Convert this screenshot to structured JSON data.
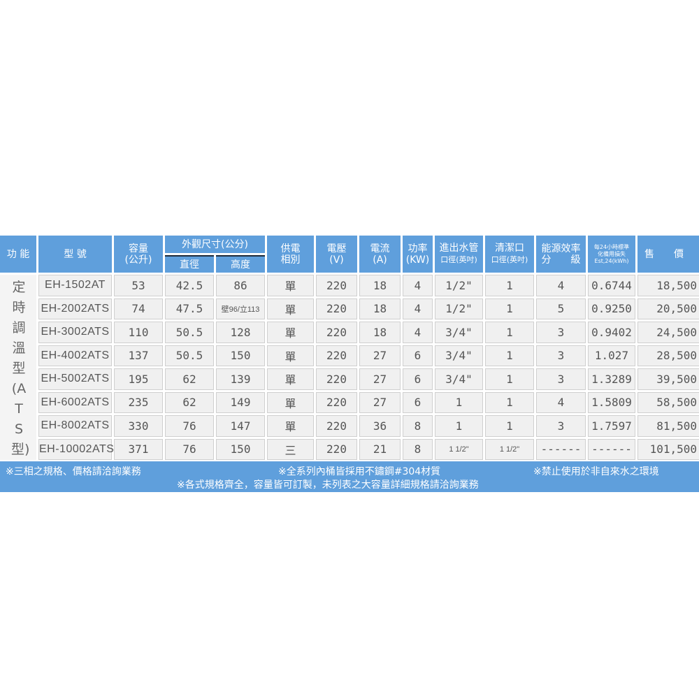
{
  "header": {
    "function": "功 能",
    "model": "型 號",
    "capacity": [
      "容量",
      "(公升)"
    ],
    "dimensions": "外觀尺寸(公分)",
    "diameter": "直徑",
    "height": "高度",
    "phase": [
      "供電",
      "相別"
    ],
    "voltage": [
      "電壓",
      "(V)"
    ],
    "current": [
      "電流",
      "(A)"
    ],
    "power": [
      "功率",
      "(KW)"
    ],
    "pipe": [
      "進出水管",
      "口徑(英吋)"
    ],
    "cleanout": [
      "清潔口",
      "口徑(英吋)"
    ],
    "energy": [
      "能源效率",
      "分　　級"
    ],
    "standby_loss": [
      "每24小時標準",
      "化備用損失",
      "Est,24(kWh)"
    ],
    "price": "售　　價"
  },
  "function_label": "定時調溫型(ATS型)",
  "rows": [
    [
      "EH-1502AT",
      "53",
      "42.5",
      "86",
      "單",
      "220",
      "18",
      "4",
      "1/2\"",
      "1",
      "4",
      "0.6744",
      "18,500"
    ],
    [
      "EH-2002ATS",
      "74",
      "47.5",
      "壁96/立113",
      "單",
      "220",
      "18",
      "4",
      "1/2\"",
      "1",
      "5",
      "0.9250",
      "20,500"
    ],
    [
      "EH-3002ATS",
      "110",
      "50.5",
      "128",
      "單",
      "220",
      "18",
      "4",
      "3/4\"",
      "1",
      "3",
      "0.9402",
      "24,500"
    ],
    [
      "EH-4002ATS",
      "137",
      "50.5",
      "150",
      "單",
      "220",
      "27",
      "6",
      "3/4\"",
      "1",
      "3",
      "1.027",
      "28,500"
    ],
    [
      "EH-5002ATS",
      "195",
      "62",
      "139",
      "單",
      "220",
      "27",
      "6",
      "3/4\"",
      "1",
      "3",
      "1.3289",
      "39,500"
    ],
    [
      "EH-6002ATS",
      "235",
      "62",
      "149",
      "單",
      "220",
      "27",
      "6",
      "1",
      "1",
      "4",
      "1.5809",
      "58,500"
    ],
    [
      "EH-8002ATS",
      "330",
      "76",
      "147",
      "單",
      "220",
      "36",
      "8",
      "1",
      "1",
      "3",
      "1.7597",
      "81,500"
    ],
    [
      "EH-10002ATS",
      "371",
      "76",
      "150",
      "三",
      "220",
      "21",
      "8",
      "1 1/2\"",
      "1 1/2\"",
      "------",
      "------",
      "101,500"
    ]
  ],
  "footer": {
    "note1": "※三相之規格、價格請洽詢業務",
    "note2": "※全系列內桶皆採用不鏽鋼#304材質",
    "note3": "※禁止使用於非自來水之環境",
    "note4": "※各式規格齊全，容量皆可訂製，未列表之大容量詳細規格請洽詢業務"
  },
  "colors": {
    "header_bg": "#5f9fdc",
    "cell_bg": "#f0f0f0",
    "text": "#555555"
  }
}
